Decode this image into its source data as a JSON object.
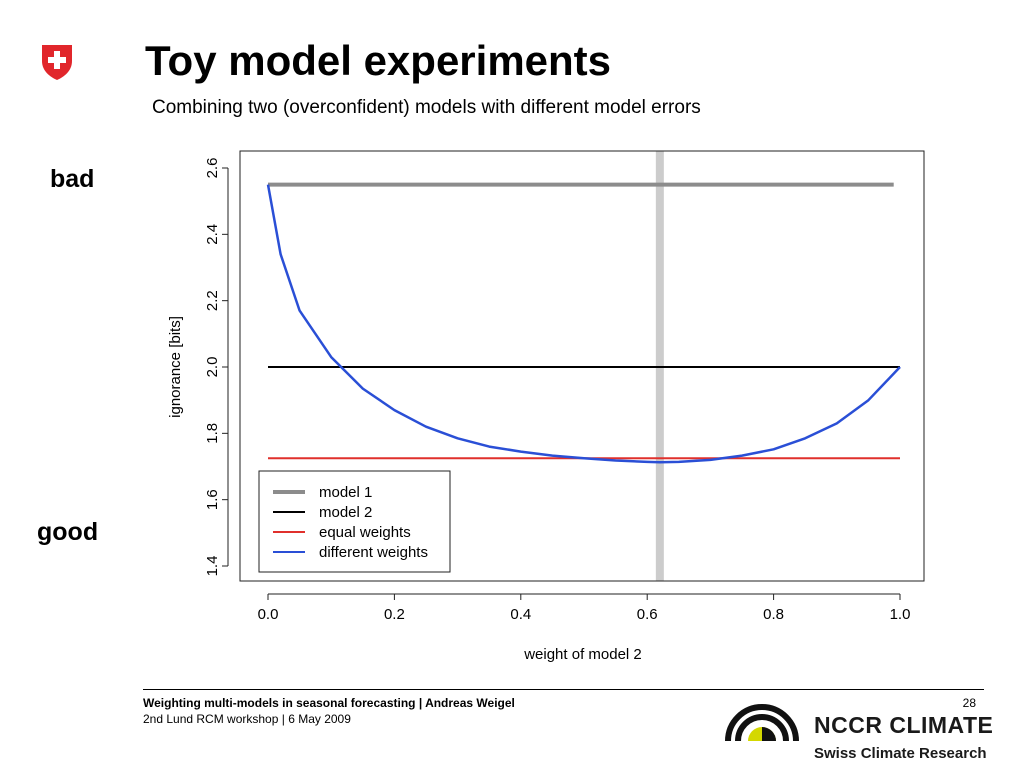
{
  "header": {
    "title": "Toy model experiments",
    "subtitle": "Combining two (overconfident) models with different model errors"
  },
  "side_labels": {
    "top": "bad",
    "bottom": "good"
  },
  "chart_data": {
    "type": "line",
    "title": "",
    "xlabel": "weight of model 2",
    "ylabel": "ignorance [bits]",
    "xlim": [
      0.0,
      1.0
    ],
    "ylim": [
      1.4,
      2.6
    ],
    "xticks": [
      "0.0",
      "0.2",
      "0.4",
      "0.6",
      "0.8",
      "1.0"
    ],
    "yticks": [
      "1.4",
      "1.6",
      "1.8",
      "2.0",
      "2.2",
      "2.4",
      "2.6"
    ],
    "grid": false,
    "legend_position": "bottom-left",
    "series": [
      {
        "name": "model 1",
        "color": "#8c8c8c",
        "x": [
          0.0,
          0.99
        ],
        "y": [
          2.55,
          2.55
        ]
      },
      {
        "name": "model 2",
        "color": "#000000",
        "x": [
          0.0,
          1.0
        ],
        "y": [
          2.0,
          2.0
        ]
      },
      {
        "name": "equal weights",
        "color": "#e0302c",
        "x": [
          0.0,
          1.0
        ],
        "y": [
          1.725,
          1.725
        ]
      },
      {
        "name": "different weights",
        "color": "#2a4fd6",
        "x": [
          0.0,
          0.02,
          0.05,
          0.1,
          0.15,
          0.2,
          0.25,
          0.3,
          0.35,
          0.4,
          0.45,
          0.5,
          0.55,
          0.6,
          0.62,
          0.65,
          0.7,
          0.75,
          0.8,
          0.85,
          0.9,
          0.95,
          1.0
        ],
        "y": [
          2.55,
          2.34,
          2.17,
          2.03,
          1.935,
          1.87,
          1.82,
          1.785,
          1.76,
          1.745,
          1.733,
          1.725,
          1.718,
          1.714,
          1.713,
          1.714,
          1.72,
          1.733,
          1.752,
          1.785,
          1.83,
          1.9,
          2.0
        ]
      }
    ],
    "vertical_marker": {
      "x": 0.62,
      "color": "#cccccc"
    }
  },
  "footer": {
    "title": "Weighting multi-models in seasonal forecasting | Andreas Weigel",
    "event": "2nd Lund RCM workshop | 6 May 2009",
    "page": "28"
  },
  "logo": {
    "name": "NCCR CLIMATE",
    "tagline": "Swiss Climate Research",
    "accent": "#d4d800"
  },
  "emblem": {
    "color": "#e1262b"
  }
}
